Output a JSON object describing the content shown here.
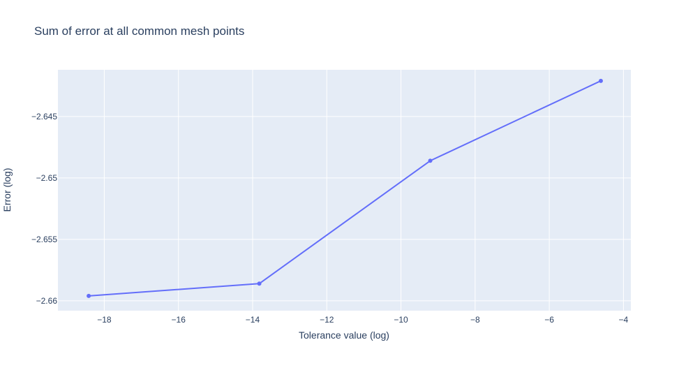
{
  "chart_data": {
    "type": "line",
    "title": "Sum of error at all common mesh points",
    "xlabel": "Tolerance value (log)",
    "ylabel": "Error (log)",
    "x": [
      -18.42,
      -13.82,
      -9.21,
      -4.61
    ],
    "series": [
      {
        "values": [
          -2.6596,
          -2.6586,
          -2.6486,
          -2.6421
        ],
        "color": "#636efa"
      }
    ],
    "xlim": [
      -19.25,
      -3.8
    ],
    "ylim": [
      -2.6608,
      -2.6412
    ],
    "xticks": [
      -18,
      -16,
      -14,
      -12,
      -10,
      -8,
      -6,
      -4
    ],
    "xtick_labels": [
      "−18",
      "−16",
      "−14",
      "−12",
      "−10",
      "−8",
      "−6",
      "−4"
    ],
    "yticks": [
      -2.66,
      -2.655,
      -2.65,
      -2.645
    ],
    "ytick_labels": [
      "−2.66",
      "−2.655",
      "−2.65",
      "−2.645"
    ],
    "grid": true,
    "plot_bg": "#e5ecf6",
    "grid_color": "#ffffff",
    "text_color": "#2a3f5f"
  }
}
